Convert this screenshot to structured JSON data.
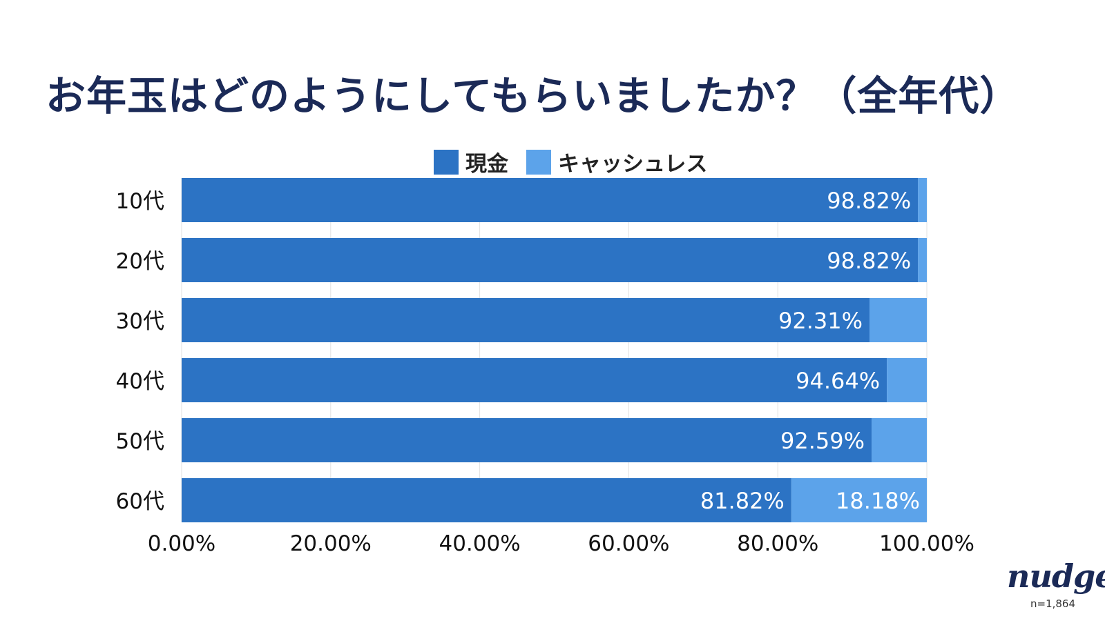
{
  "title": "お年玉はどのようにしてもらいましたか？（全年代）",
  "colors": {
    "cash": "#2c73c4",
    "cashless": "#5ca3ea",
    "title": "#1b2a57",
    "grid": "#e2e2e2"
  },
  "chart_data": {
    "type": "bar",
    "orientation": "horizontal",
    "stacked": true,
    "title": "お年玉はどのようにしてもらいましたか？（全年代）",
    "categories": [
      "10代",
      "20代",
      "30代",
      "40代",
      "50代",
      "60代"
    ],
    "series": [
      {
        "name": "現金",
        "values": [
          98.82,
          98.82,
          92.31,
          94.64,
          92.59,
          81.82
        ],
        "labels": [
          "98.82%",
          "98.82%",
          "92.31%",
          "94.64%",
          "92.59%",
          "81.82%"
        ]
      },
      {
        "name": "キャッシュレス",
        "values": [
          1.18,
          1.18,
          7.69,
          5.36,
          7.41,
          18.18
        ],
        "labels": [
          "",
          "",
          "",
          "",
          "",
          "18.18%"
        ]
      }
    ],
    "xlim": [
      0,
      100
    ],
    "xticks": [
      "0.00%",
      "20.00%",
      "40.00%",
      "60.00%",
      "80.00%",
      "100.00%"
    ],
    "legend": "top-center",
    "grid": true
  },
  "footer": {
    "logo": "nudge",
    "sample": "n=1,864"
  }
}
